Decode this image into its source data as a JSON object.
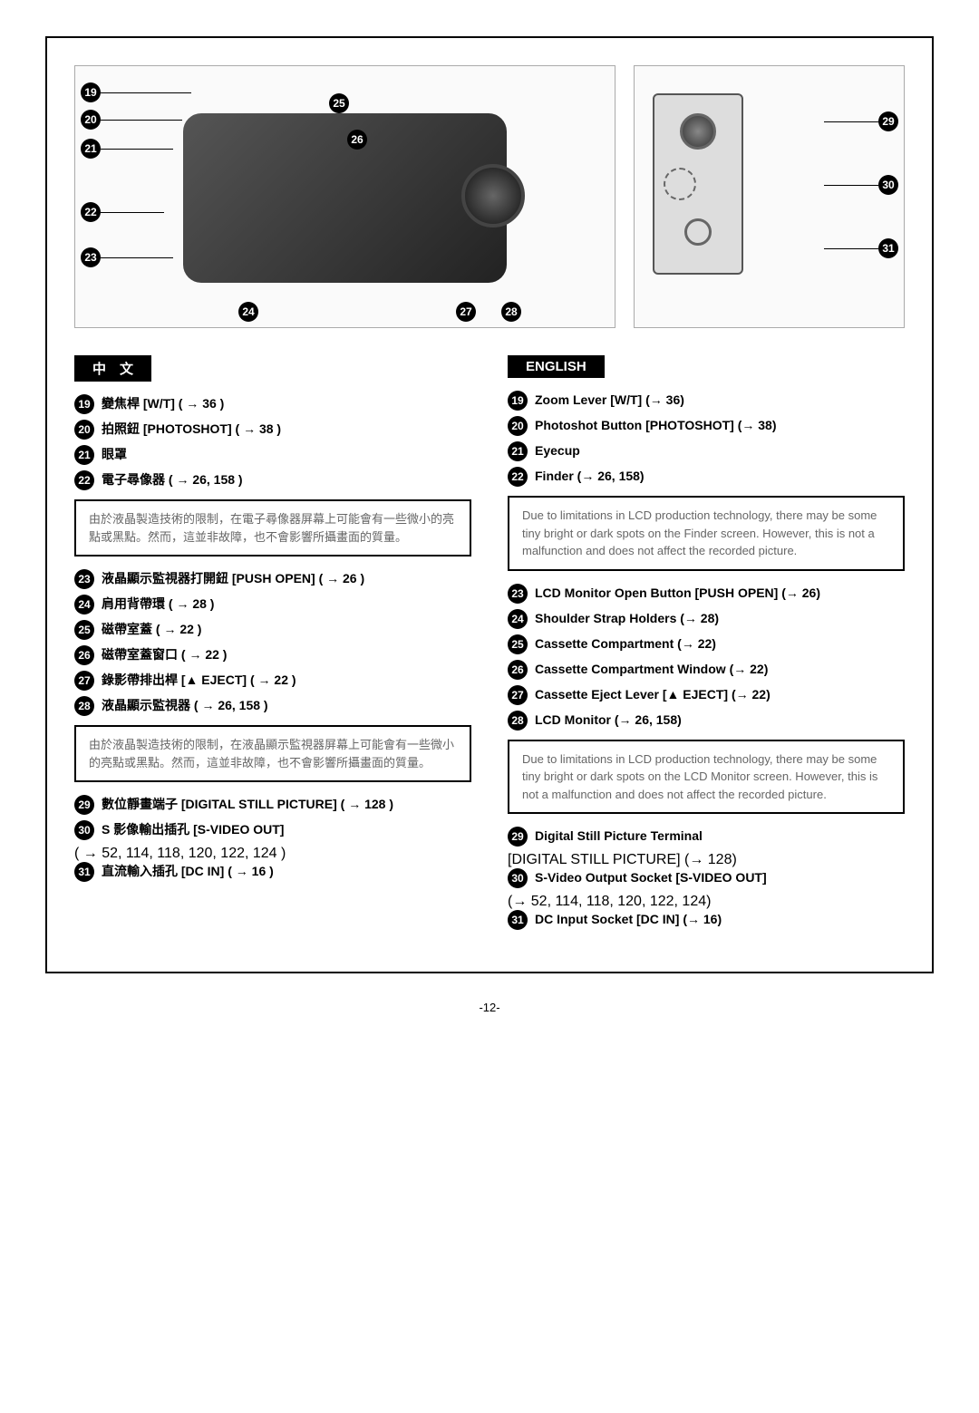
{
  "pageNumber": "-12-",
  "diagram": {
    "leftCallouts": [
      "19",
      "20",
      "21",
      "22",
      "23",
      "24",
      "25",
      "26",
      "27",
      "28"
    ],
    "rightCallouts": [
      "29",
      "30",
      "31"
    ]
  },
  "chinese": {
    "heading": "中　文",
    "items1": [
      {
        "n": "19",
        "t": "變焦桿 [W/T] ( → 36 )"
      },
      {
        "n": "20",
        "t": "拍照鈕 [PHOTOSHOT] ( → 38 )"
      },
      {
        "n": "21",
        "t": "眼罩"
      },
      {
        "n": "22",
        "t": "電子尋像器 ( → 26, 158 )"
      }
    ],
    "note1": "由於液晶製造技術的限制，在電子尋像器屏幕上可能會有一些微小的亮點或黑點。然而，這並非故障，也不會影響所攝畫面的質量。",
    "items2": [
      {
        "n": "23",
        "t": "液晶顯示監視器打開鈕 [PUSH OPEN] ( → 26 )"
      },
      {
        "n": "24",
        "t": "肩用背帶環 ( → 28 )"
      },
      {
        "n": "25",
        "t": "磁帶室蓋 ( → 22 )"
      },
      {
        "n": "26",
        "t": "磁帶室蓋窗口 ( → 22 )"
      },
      {
        "n": "27",
        "t": "錄影帶排出桿 [▲ EJECT] ( → 22 )"
      },
      {
        "n": "28",
        "t": "液晶顯示監視器 ( → 26, 158 )"
      }
    ],
    "note2": "由於液晶製造技術的限制，在液晶顯示監視器屏幕上可能會有一些微小的亮點或黑點。然而，這並非故障，也不會影響所攝畫面的質量。",
    "items3": [
      {
        "n": "29",
        "t": "數位靜畫端子 [DIGITAL STILL PICTURE] ( → 128 )"
      },
      {
        "n": "30",
        "t": "S 影像輸出插孔 [S-VIDEO OUT]",
        "sub": "( → 52, 114, 118, 120, 122, 124 )"
      },
      {
        "n": "31",
        "t": "直流輸入插孔 [DC IN] ( → 16 )"
      }
    ]
  },
  "english": {
    "heading": "ENGLISH",
    "items1": [
      {
        "n": "19",
        "t": "Zoom Lever [W/T] (→ 36)"
      },
      {
        "n": "20",
        "t": "Photoshot Button [PHOTOSHOT] (→ 38)"
      },
      {
        "n": "21",
        "t": "Eyecup"
      },
      {
        "n": "22",
        "t": "Finder (→ 26, 158)"
      }
    ],
    "note1": "Due to limitations in LCD production technology, there may be some tiny bright or dark spots on the Finder screen. However, this is not a malfunction and does not affect the recorded picture.",
    "items2": [
      {
        "n": "23",
        "t": "LCD Monitor Open Button [PUSH OPEN] (→ 26)"
      },
      {
        "n": "24",
        "t": "Shoulder Strap Holders (→ 28)"
      },
      {
        "n": "25",
        "t": "Cassette Compartment (→ 22)"
      },
      {
        "n": "26",
        "t": "Cassette Compartment Window (→ 22)"
      },
      {
        "n": "27",
        "t": "Cassette Eject Lever [▲ EJECT] (→ 22)"
      },
      {
        "n": "28",
        "t": "LCD Monitor (→ 26, 158)"
      }
    ],
    "note2": "Due to limitations in LCD production technology, there may be some tiny bright or dark spots on the LCD Monitor screen. However, this is not a malfunction and does not affect the recorded picture.",
    "items3": [
      {
        "n": "29",
        "t": "Digital Still Picture Terminal",
        "sub": "[DIGITAL STILL PICTURE] (→ 128)"
      },
      {
        "n": "30",
        "t": "S-Video Output Socket [S-VIDEO OUT]",
        "sub": "(→ 52, 114, 118, 120, 122, 124)"
      },
      {
        "n": "31",
        "t": "DC Input Socket [DC IN] (→ 16)"
      }
    ]
  }
}
